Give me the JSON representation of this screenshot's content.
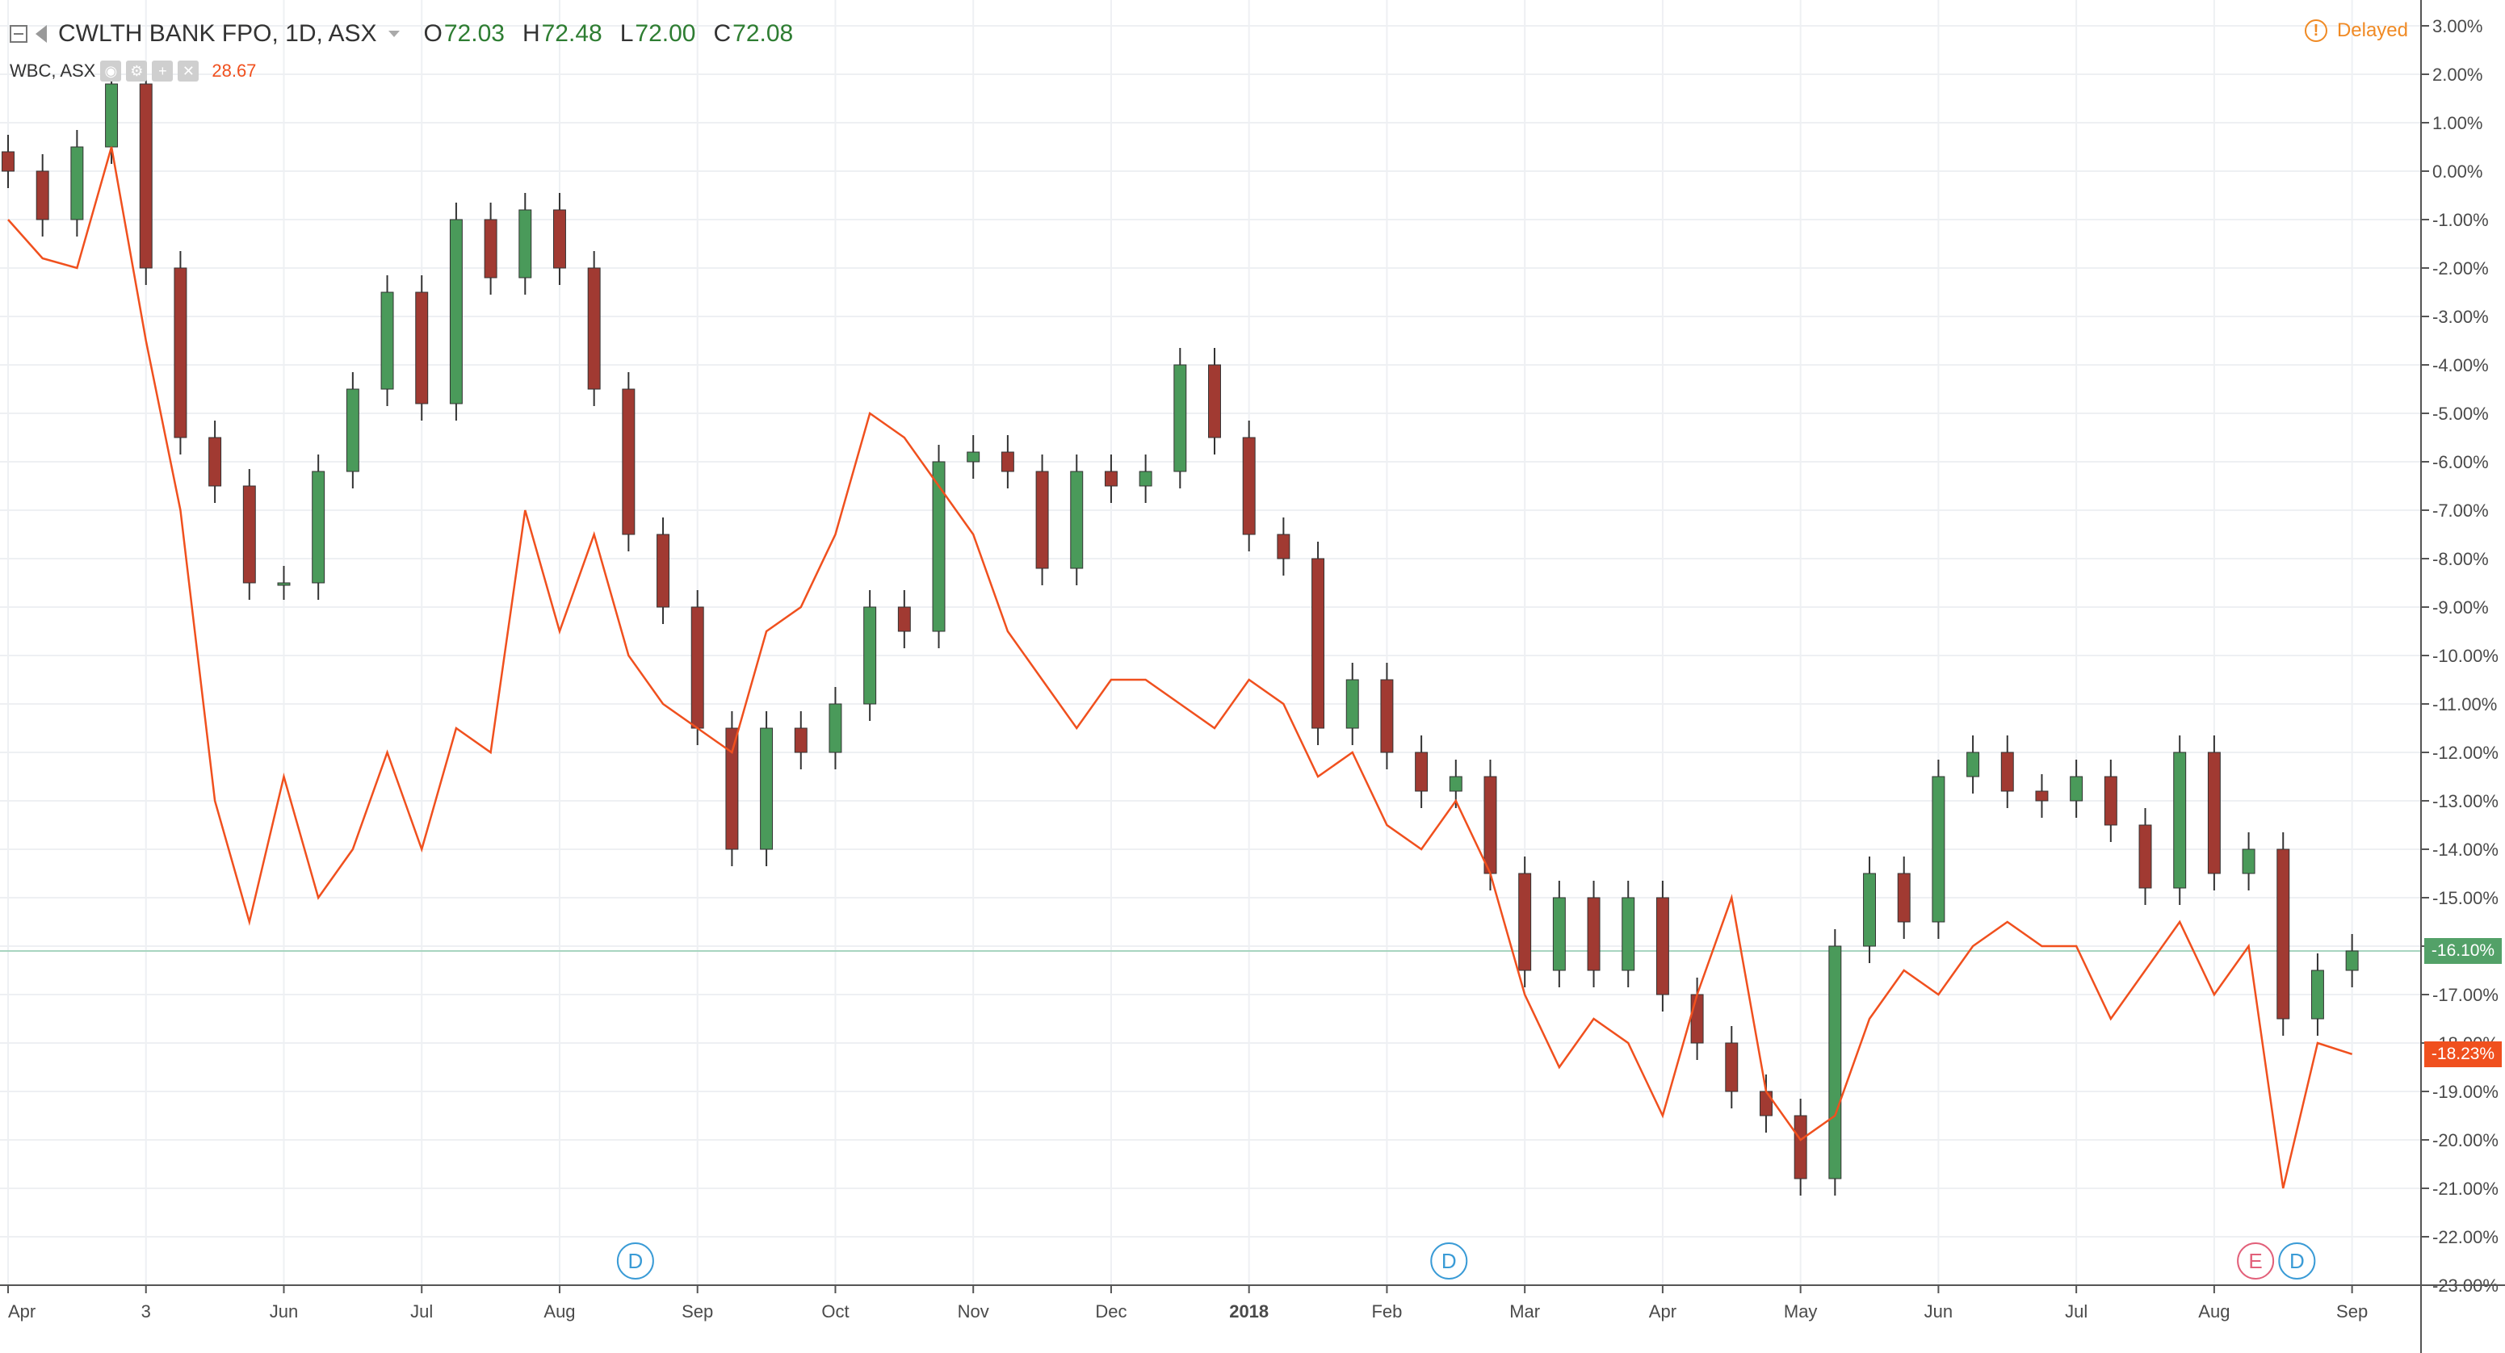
{
  "header": {
    "symbol": "CWLTH BANK FPO, 1D, ASX",
    "ohlc": [
      {
        "key": "O",
        "value": "72.03"
      },
      {
        "key": "H",
        "value": "72.48"
      },
      {
        "key": "L",
        "value": "72.00"
      },
      {
        "key": "C",
        "value": "72.08"
      }
    ],
    "compare_symbol": "WBC, ASX",
    "compare_value": "28.67",
    "indicator_icons": [
      "eye-icon",
      "gear-icon",
      "plus-icon",
      "close-icon"
    ],
    "delayed_label": "Delayed",
    "delayed_icon": "!"
  },
  "colors": {
    "up": "#4a9a5a",
    "down": "#a13a32",
    "compare_line": "#f0501e",
    "last_price_line": "#a8d5c0",
    "tag_main": "#53a168",
    "tag_compare": "#f0501e",
    "dividend_marker": "#3a9bd6",
    "earnings_marker": "#e2607a",
    "delayed": "#f08a24"
  },
  "chart_data": {
    "type": "line",
    "yscale": "percent change",
    "ylim": [
      -23.0,
      3.0
    ],
    "y_ticks": [
      "3.00%",
      "2.00%",
      "1.00%",
      "0.00%",
      "-1.00%",
      "-2.00%",
      "-3.00%",
      "-4.00%",
      "-5.00%",
      "-6.00%",
      "-7.00%",
      "-8.00%",
      "-9.00%",
      "-10.00%",
      "-11.00%",
      "-12.00%",
      "-13.00%",
      "-14.00%",
      "-15.00%",
      "-16.00%",
      "-17.00%",
      "-18.00%",
      "-19.00%",
      "-20.00%",
      "-21.00%",
      "-22.00%",
      "-23.00%"
    ],
    "x_ticks": [
      "Apr",
      "3",
      "Jun",
      "Jul",
      "Aug",
      "Sep",
      "Oct",
      "Nov",
      "Dec",
      "2018",
      "Feb",
      "Mar",
      "Apr",
      "May",
      "Jun",
      "Jul",
      "Aug",
      "Sep"
    ],
    "xlim": [
      0,
      17.5
    ],
    "grid": true,
    "series": [
      {
        "name": "CWLTH BANK FPO",
        "style": "candlestick",
        "last_value": "-16.10%",
        "x": [
          0.0,
          0.25,
          0.5,
          0.75,
          1.0,
          1.25,
          1.5,
          1.75,
          2.0,
          2.25,
          2.5,
          2.75,
          3.0,
          3.25,
          3.5,
          3.75,
          4.0,
          4.25,
          4.5,
          4.75,
          5.0,
          5.25,
          5.5,
          5.75,
          6.0,
          6.25,
          6.5,
          6.75,
          7.0,
          7.25,
          7.5,
          7.75,
          8.0,
          8.25,
          8.5,
          8.75,
          9.0,
          9.25,
          9.5,
          9.75,
          10.0,
          10.25,
          10.5,
          10.75,
          11.0,
          11.25,
          11.5,
          11.75,
          12.0,
          12.25,
          12.5,
          12.75,
          13.0,
          13.25,
          13.5,
          13.75,
          14.0,
          14.25,
          14.5,
          14.75,
          15.0,
          15.25,
          15.5,
          15.75,
          16.0,
          16.25,
          16.5,
          16.75,
          17.0
        ],
        "close": [
          0.0,
          -1.0,
          0.5,
          1.8,
          -2.0,
          -5.5,
          -6.5,
          -8.5,
          -8.5,
          -6.2,
          -4.5,
          -2.5,
          -4.8,
          -1.0,
          -2.2,
          -0.8,
          -2.0,
          -4.5,
          -7.5,
          -9.0,
          -11.5,
          -14.0,
          -11.5,
          -12.0,
          -11.0,
          -9.0,
          -9.5,
          -6.0,
          -5.8,
          -6.2,
          -8.2,
          -6.2,
          -6.5,
          -6.2,
          -4.0,
          -5.5,
          -7.5,
          -8.0,
          -11.5,
          -10.5,
          -12.0,
          -12.8,
          -12.5,
          -14.5,
          -16.5,
          -15.0,
          -16.5,
          -15.0,
          -17.0,
          -18.0,
          -19.0,
          -19.5,
          -20.8,
          -16.0,
          -14.5,
          -15.5,
          -12.5,
          -12.0,
          -12.8,
          -13.0,
          -12.5,
          -13.5,
          -14.8,
          -12.0,
          -14.5,
          -14.0,
          -17.5,
          -16.5,
          -16.1
        ]
      },
      {
        "name": "WBC",
        "style": "line",
        "last_value": "-18.23%",
        "x": [
          0.0,
          0.25,
          0.5,
          0.75,
          1.0,
          1.25,
          1.5,
          1.75,
          2.0,
          2.25,
          2.5,
          2.75,
          3.0,
          3.25,
          3.5,
          3.75,
          4.0,
          4.25,
          4.5,
          4.75,
          5.0,
          5.25,
          5.5,
          5.75,
          6.0,
          6.25,
          6.5,
          6.75,
          7.0,
          7.25,
          7.5,
          7.75,
          8.0,
          8.25,
          8.5,
          8.75,
          9.0,
          9.25,
          9.5,
          9.75,
          10.0,
          10.25,
          10.5,
          10.75,
          11.0,
          11.25,
          11.5,
          11.75,
          12.0,
          12.25,
          12.5,
          12.75,
          13.0,
          13.25,
          13.5,
          13.75,
          14.0,
          14.25,
          14.5,
          14.75,
          15.0,
          15.25,
          15.5,
          15.75,
          16.0,
          16.25,
          16.5,
          16.75,
          17.0
        ],
        "values": [
          -1.0,
          -1.8,
          -2.0,
          0.5,
          -3.5,
          -7.0,
          -13.0,
          -15.5,
          -12.5,
          -15.0,
          -14.0,
          -12.0,
          -14.0,
          -11.5,
          -12.0,
          -7.0,
          -9.5,
          -7.5,
          -10.0,
          -11.0,
          -11.5,
          -12.0,
          -9.5,
          -9.0,
          -7.5,
          -5.0,
          -5.5,
          -6.5,
          -7.5,
          -9.5,
          -10.5,
          -11.5,
          -10.5,
          -10.5,
          -11.0,
          -11.5,
          -10.5,
          -11.0,
          -12.5,
          -12.0,
          -13.5,
          -14.0,
          -13.0,
          -14.5,
          -17.0,
          -18.5,
          -17.5,
          -18.0,
          -19.5,
          -17.0,
          -15.0,
          -19.0,
          -20.0,
          -19.5,
          -17.5,
          -16.5,
          -17.0,
          -16.0,
          -15.5,
          -16.0,
          -16.0,
          -17.5,
          -16.5,
          -15.5,
          -17.0,
          -16.0,
          -21.0,
          -18.0,
          -18.23
        ]
      }
    ],
    "markers": [
      {
        "label": "D",
        "x": 4.55,
        "kind": "dividend"
      },
      {
        "label": "D",
        "x": 10.45,
        "kind": "dividend"
      },
      {
        "label": "E",
        "x": 16.3,
        "kind": "earnings"
      },
      {
        "label": "D",
        "x": 16.6,
        "kind": "dividend"
      }
    ]
  }
}
